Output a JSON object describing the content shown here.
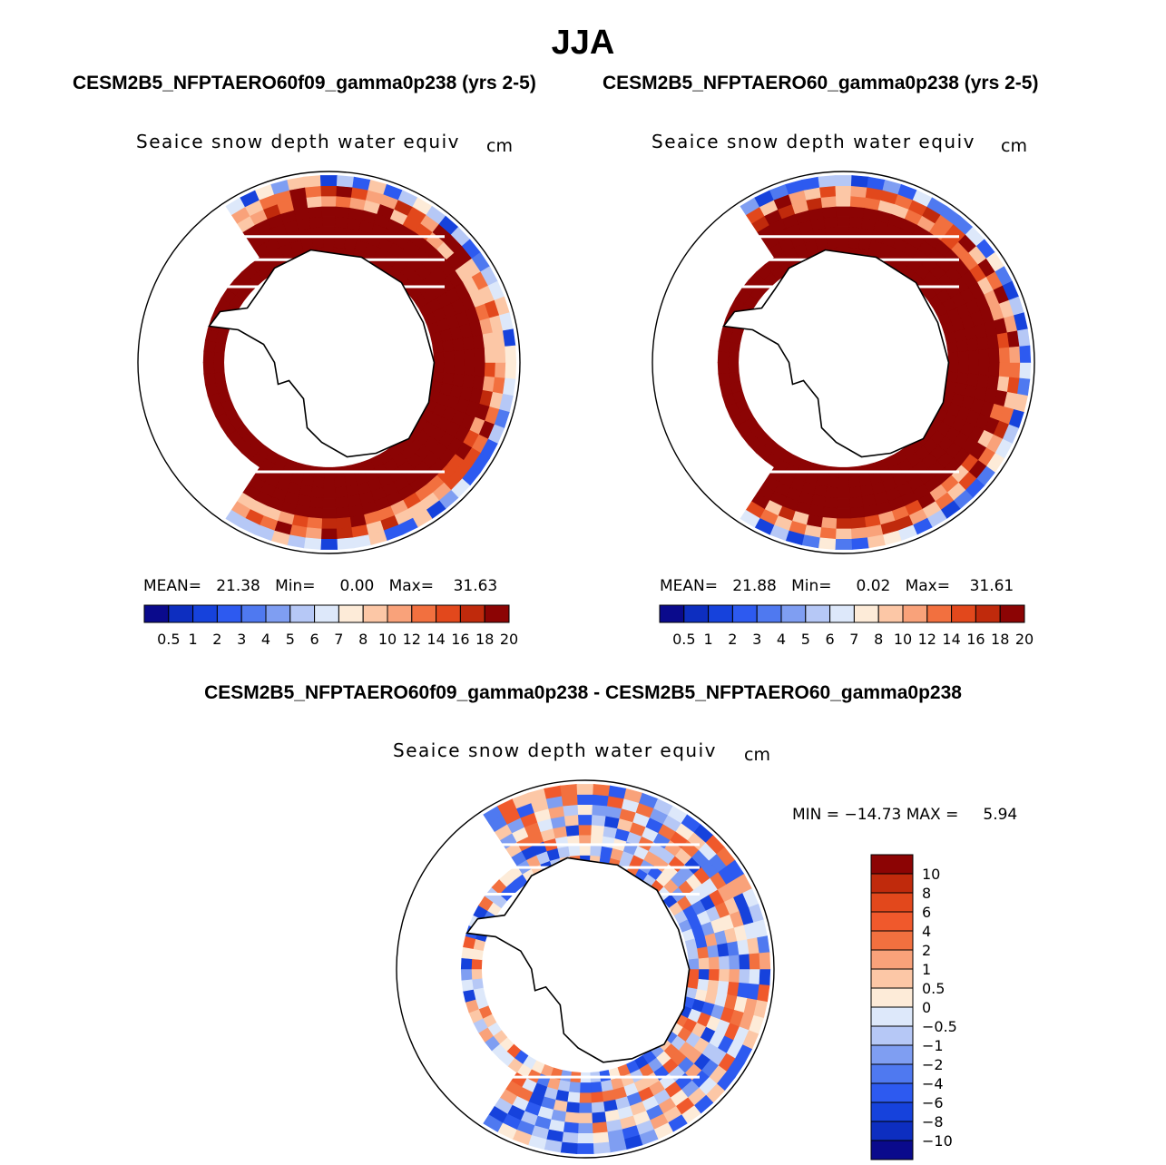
{
  "figure": {
    "season": "JJA"
  },
  "panels": [
    {
      "case_title": "CESM2B5_NFPTAERO60f09_gamma0p238 (yrs 2-5)",
      "variable": "Seaice snow depth water equiv",
      "units": "cm",
      "stats": "MEAN=   21.38   Min=     0.00   Max=    31.63"
    },
    {
      "case_title": "CESM2B5_NFPTAERO60_gamma0p238 (yrs 2-5)",
      "variable": "Seaice snow depth water equiv",
      "units": "cm",
      "stats": "MEAN=   21.88   Min=     0.02   Max=    31.61"
    }
  ],
  "difference": {
    "title": "CESM2B5_NFPTAERO60f09_gamma0p238 - CESM2B5_NFPTAERO60_gamma0p238",
    "variable": "Seaice snow depth water equiv",
    "units": "cm",
    "stats": "MIN = −14.73 MAX =     5.94"
  },
  "chart_data": [
    {
      "type": "heatmap",
      "title": "Seaice snow depth water equiv",
      "units": "cm",
      "projection": "south polar stereographic",
      "statistics": {
        "mean": 21.38,
        "min": 0.0,
        "max": 31.63
      },
      "colorbar": {
        "orientation": "horizontal",
        "levels": [
          "0.5",
          "1",
          "2",
          "3",
          "4",
          "5",
          "6",
          "7",
          "8",
          "10",
          "12",
          "14",
          "16",
          "18",
          "20"
        ],
        "colors": [
          "#0a0a8c",
          "#0d2ec0",
          "#1642dc",
          "#2d5af0",
          "#4f79f0",
          "#7f9ef2",
          "#b6c8f6",
          "#dde8fa",
          "#fdebd8",
          "#fcc7a6",
          "#f9a27a",
          "#f2703f",
          "#e2481c",
          "#c02a0c",
          "#8c0404"
        ]
      }
    },
    {
      "type": "heatmap",
      "title": "Seaice snow depth water equiv",
      "units": "cm",
      "projection": "south polar stereographic",
      "statistics": {
        "mean": 21.88,
        "min": 0.02,
        "max": 31.61
      },
      "colorbar": {
        "orientation": "horizontal",
        "levels": [
          "0.5",
          "1",
          "2",
          "3",
          "4",
          "5",
          "6",
          "7",
          "8",
          "10",
          "12",
          "14",
          "16",
          "18",
          "20"
        ],
        "colors": [
          "#0a0a8c",
          "#0d2ec0",
          "#1642dc",
          "#2d5af0",
          "#4f79f0",
          "#7f9ef2",
          "#b6c8f6",
          "#dde8fa",
          "#fdebd8",
          "#fcc7a6",
          "#f9a27a",
          "#f2703f",
          "#e2481c",
          "#c02a0c",
          "#8c0404"
        ]
      }
    },
    {
      "type": "heatmap",
      "title": "Seaice snow depth water equiv",
      "units": "cm",
      "projection": "south polar stereographic",
      "statistics": {
        "min": -14.73,
        "max": 5.94
      },
      "colorbar": {
        "orientation": "vertical",
        "levels": [
          "10",
          "8",
          "6",
          "4",
          "2",
          "1",
          "0.5",
          "0",
          "−0.5",
          "−1",
          "−2",
          "−4",
          "−6",
          "−8",
          "−10"
        ],
        "colors": [
          "#8c0404",
          "#c02a0c",
          "#e2481c",
          "#f0592c",
          "#f2703f",
          "#f9a27a",
          "#fcc7a6",
          "#fdebd8",
          "#dde8fa",
          "#b6c8f6",
          "#7f9ef2",
          "#4f79f0",
          "#2d5af0",
          "#1642dc",
          "#0d2ec0",
          "#0a0a8c"
        ]
      }
    }
  ]
}
